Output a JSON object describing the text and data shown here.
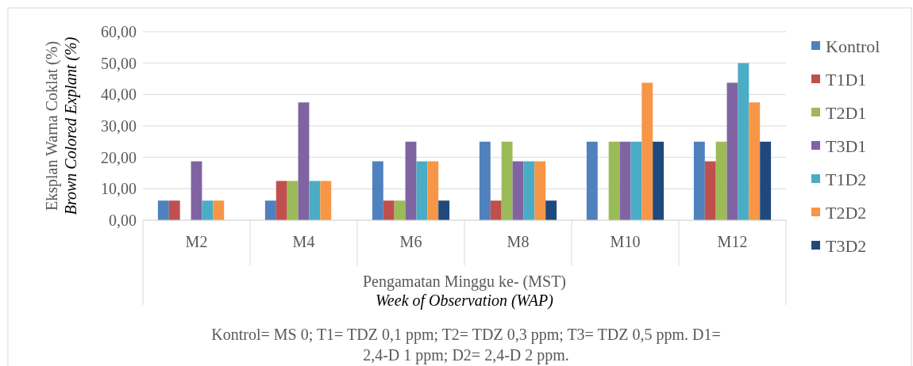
{
  "chart_data": {
    "type": "bar",
    "categories": [
      "M2",
      "M4",
      "M6",
      "M8",
      "M10",
      "M12"
    ],
    "series": [
      {
        "name": "Kontrol",
        "color": "#4f81bd",
        "values": [
          6.25,
          6.25,
          18.75,
          25,
          25,
          25
        ]
      },
      {
        "name": "T1D1",
        "color": "#c0504d",
        "values": [
          6.25,
          12.5,
          6.25,
          6.25,
          0,
          18.75
        ]
      },
      {
        "name": "T2D1",
        "color": "#9bbb59",
        "values": [
          0,
          12.5,
          6.25,
          25,
          25,
          25
        ]
      },
      {
        "name": "T3D1",
        "color": "#8064a2",
        "values": [
          18.75,
          37.5,
          25,
          18.75,
          25,
          43.75
        ]
      },
      {
        "name": "T1D2",
        "color": "#4bacc6",
        "values": [
          6.25,
          12.5,
          18.75,
          18.75,
          25,
          50
        ]
      },
      {
        "name": "T2D2",
        "color": "#f79646",
        "values": [
          6.25,
          12.5,
          18.75,
          18.75,
          43.75,
          37.5
        ]
      },
      {
        "name": "T3D2",
        "color": "#1f497d",
        "values": [
          0,
          0,
          6.25,
          6.25,
          25,
          25
        ]
      }
    ],
    "ylim": [
      0,
      60
    ],
    "yticks": [
      {
        "value": 0,
        "label": "0,00"
      },
      {
        "value": 10,
        "label": "10,00"
      },
      {
        "value": 20,
        "label": "20,00"
      },
      {
        "value": 30,
        "label": "30,00"
      },
      {
        "value": 40,
        "label": "40,00"
      },
      {
        "value": 50,
        "label": "50,00"
      },
      {
        "value": 60,
        "label": "60,00"
      }
    ],
    "grid": "y",
    "legend": "right",
    "xlabel": "Pengamatan Minggu ke- (MST)\nWeek of Observation (WAP)",
    "ylabel": "Eksplan Warna Coklat (%)\nBrown Colored Explant (%)",
    "annotations": [
      "Kontrol= MS 0; T1= TDZ 0,1 ppm; T2= TDZ 0,3 ppm; T3= TDZ 0,5 ppm. D1= 2,4-D 1 ppm; D2= 2,4-D 2 ppm."
    ]
  }
}
